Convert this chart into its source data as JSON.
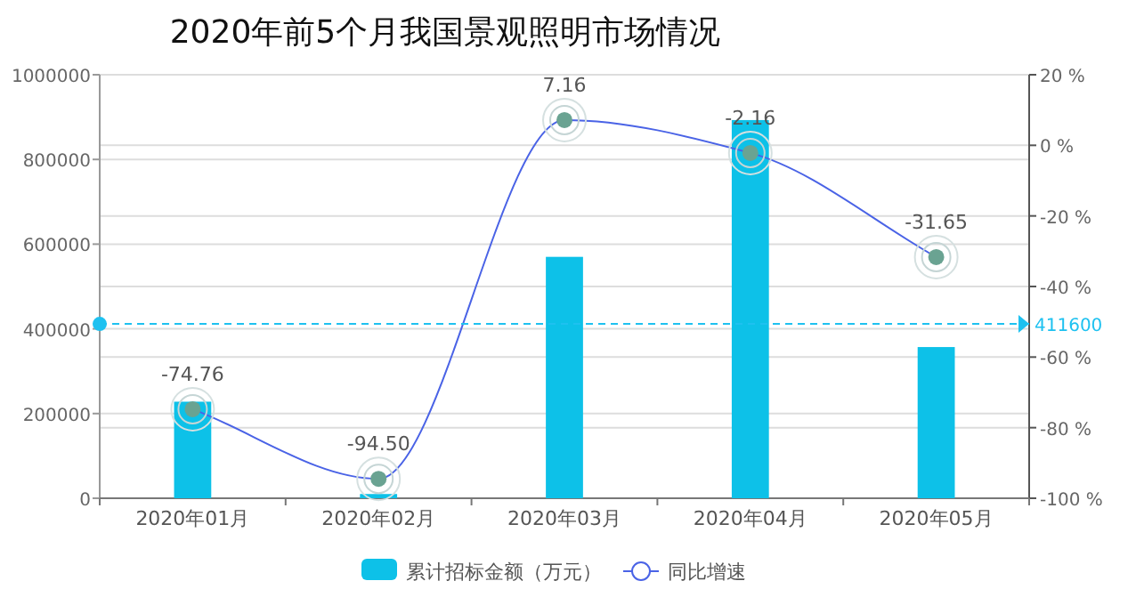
{
  "chart_data": {
    "type": "bar",
    "title": "2020年前5个月我国景观照明市场情况",
    "categories": [
      "2020年01月",
      "2020年02月",
      "2020年03月",
      "2020年04月",
      "2020年05月"
    ],
    "series": [
      {
        "name": "累计招标金额（万元）",
        "color": "#0dc1e8",
        "values": [
          228000,
          10000,
          570000,
          893000,
          357000
        ]
      },
      {
        "name": "同比增速",
        "type": "line",
        "axis": "y2",
        "color": "#4a63e6",
        "marker": "circle",
        "values": [
          -74.76,
          -94.5,
          7.16,
          -2.16,
          -31.65
        ],
        "value_labels": [
          "-74.76",
          "-94.50",
          "7.16",
          "-2.16",
          "-31.65"
        ]
      }
    ],
    "ylim": [
      0,
      1000000
    ],
    "yticks": [
      0,
      200000,
      400000,
      600000,
      800000,
      1000000
    ],
    "y2lim": [
      -100,
      20
    ],
    "y2ticks": [
      {
        "value": -100,
        "label": "-100 %"
      },
      {
        "value": -80,
        "label": "-80 %"
      },
      {
        "value": -60,
        "label": "-60 %"
      },
      {
        "value": -40,
        "label": "-40 %"
      },
      {
        "value": -20,
        "label": "-20 %"
      },
      {
        "value": 0,
        "label": "0 %"
      },
      {
        "value": 20,
        "label": "20 %"
      }
    ],
    "ref_lines": [
      {
        "axis": "y",
        "value": 411600,
        "label": "411600",
        "color": "#1ec1f0",
        "line_style": "dashed"
      }
    ],
    "grid": "y",
    "legend": "bottom"
  }
}
